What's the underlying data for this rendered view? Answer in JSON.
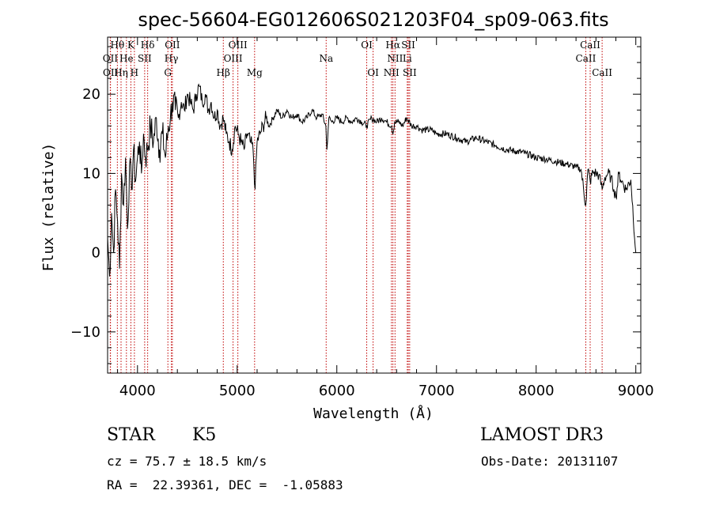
{
  "chart_data": {
    "type": "line",
    "title": "spec-56604-EG012606S021203F04_sp09-063.fits",
    "xlabel": "Wavelength (Å)",
    "ylabel": "Flux (relative)",
    "xlim": [
      3700,
      9050
    ],
    "ylim": [
      -15.2,
      27.2
    ],
    "xticks": [
      4000,
      5000,
      6000,
      7000,
      8000,
      9000
    ],
    "xtick_labels": [
      "4000",
      "5000",
      "6000",
      "7000",
      "8000",
      "9000"
    ],
    "yticks": [
      -10,
      0,
      10,
      20
    ],
    "ytick_labels": [
      "−10",
      "0",
      "10",
      "20"
    ],
    "series": [
      {
        "name": "spectrum",
        "x": [
          3700,
          3720,
          3740,
          3760,
          3780,
          3800,
          3820,
          3840,
          3860,
          3880,
          3900,
          3920,
          3940,
          3960,
          3980,
          4000,
          4020,
          4040,
          4060,
          4080,
          4100,
          4130,
          4160,
          4190,
          4220,
          4250,
          4280,
          4310,
          4330,
          4350,
          4380,
          4410,
          4440,
          4470,
          4500,
          4530,
          4560,
          4590,
          4620,
          4650,
          4680,
          4710,
          4740,
          4770,
          4800,
          4830,
          4860,
          4890,
          4920,
          4950,
          4980,
          5010,
          5040,
          5070,
          5100,
          5130,
          5160,
          5180,
          5200,
          5230,
          5260,
          5290,
          5320,
          5360,
          5400,
          5450,
          5500,
          5550,
          5600,
          5650,
          5700,
          5750,
          5800,
          5850,
          5890,
          5900,
          5920,
          5950,
          6000,
          6050,
          6100,
          6150,
          6200,
          6250,
          6300,
          6350,
          6400,
          6450,
          6500,
          6550,
          6563,
          6580,
          6620,
          6660,
          6700,
          6750,
          6800,
          6850,
          6900,
          6950,
          7000,
          7100,
          7200,
          7300,
          7400,
          7500,
          7600,
          7700,
          7800,
          7900,
          8000,
          8100,
          8200,
          8300,
          8400,
          8450,
          8498,
          8520,
          8542,
          8570,
          8600,
          8630,
          8662,
          8690,
          8720,
          8750,
          8780,
          8800,
          8830,
          8860,
          8900,
          8950,
          9000
        ],
        "y": [
          2,
          -3,
          5,
          0,
          8,
          4,
          -2,
          10,
          6,
          12,
          3,
          11,
          8,
          13,
          9,
          12,
          14,
          10,
          15,
          12,
          13,
          16,
          14,
          17,
          13,
          15,
          12,
          16,
          17,
          19,
          18,
          17,
          19,
          18,
          20,
          19,
          18,
          20,
          21,
          19,
          20,
          18,
          19,
          17,
          18,
          16,
          17,
          15,
          14,
          13,
          16,
          15,
          14,
          13,
          15,
          14,
          13,
          8,
          14,
          15,
          16,
          17,
          16,
          17,
          18,
          17,
          18,
          17,
          17.5,
          16.5,
          17,
          18,
          17,
          17.5,
          16,
          13,
          17,
          16.5,
          17,
          16.5,
          17,
          16.5,
          17,
          16.5,
          16,
          17,
          16.5,
          17,
          16.5,
          16,
          15,
          16.5,
          16.5,
          16,
          17,
          16,
          16,
          15.5,
          15.5,
          15.5,
          15,
          15,
          14.5,
          14,
          14.5,
          14,
          13.5,
          13,
          12.8,
          12.5,
          12,
          11.8,
          11.5,
          11.2,
          10.8,
          10.5,
          6,
          10.5,
          9,
          10.2,
          10,
          9.8,
          8,
          9.5,
          10,
          9.5,
          8,
          7,
          10,
          9,
          8,
          9.2,
          0
        ]
      }
    ],
    "lines": [
      {
        "label": "Hθ",
        "x": 3798,
        "row": 1
      },
      {
        "label": "K",
        "x": 3934,
        "row": 1
      },
      {
        "label": "Hδ",
        "x": 4102,
        "row": 1
      },
      {
        "label": "OII",
        "x": 4350,
        "row": 1
      },
      {
        "label": "OIII",
        "x": 5007,
        "row": 1
      },
      {
        "label": "OI",
        "x": 6300,
        "row": 1
      },
      {
        "label": "Hα",
        "x": 6563,
        "row": 1
      },
      {
        "label": "SII",
        "x": 6717,
        "row": 1
      },
      {
        "label": "CaII",
        "x": 8542,
        "row": 1
      },
      {
        "label": "OII",
        "x": 3727,
        "row": 2
      },
      {
        "label": "He",
        "x": 3889,
        "row": 2
      },
      {
        "label": "SII",
        "x": 4072,
        "row": 2
      },
      {
        "label": "Hγ",
        "x": 4340,
        "row": 2
      },
      {
        "label": "OIII",
        "x": 4959,
        "row": 2
      },
      {
        "label": "Na",
        "x": 5893,
        "row": 2
      },
      {
        "label": "NII",
        "x": 6584,
        "row": 2
      },
      {
        "label": "Li",
        "x": 6707,
        "row": 2
      },
      {
        "label": "CaII",
        "x": 8498,
        "row": 2
      },
      {
        "label": "OII",
        "x": 3729,
        "row": 3
      },
      {
        "label": "Hη",
        "x": 3835,
        "row": 3
      },
      {
        "label": "H",
        "x": 3969,
        "row": 3
      },
      {
        "label": "G",
        "x": 4305,
        "row": 3
      },
      {
        "label": "Hβ",
        "x": 4861,
        "row": 3
      },
      {
        "label": "Mg",
        "x": 5175,
        "row": 3
      },
      {
        "label": "OI",
        "x": 6364,
        "row": 3
      },
      {
        "label": "NII",
        "x": 6548,
        "row": 3
      },
      {
        "label": "SII",
        "x": 6731,
        "row": 3
      },
      {
        "label": "CaII",
        "x": 8662,
        "row": 3
      }
    ],
    "line_color": "#c00000"
  },
  "info": {
    "class": "STAR",
    "subclass": "K5",
    "survey": "LAMOST DR3",
    "cz": "cz = 75.7 ± 18.5 km/s",
    "obs_date": "Obs-Date: 20131107",
    "coords": "RA =  22.39361, DEC =  -1.05883"
  }
}
